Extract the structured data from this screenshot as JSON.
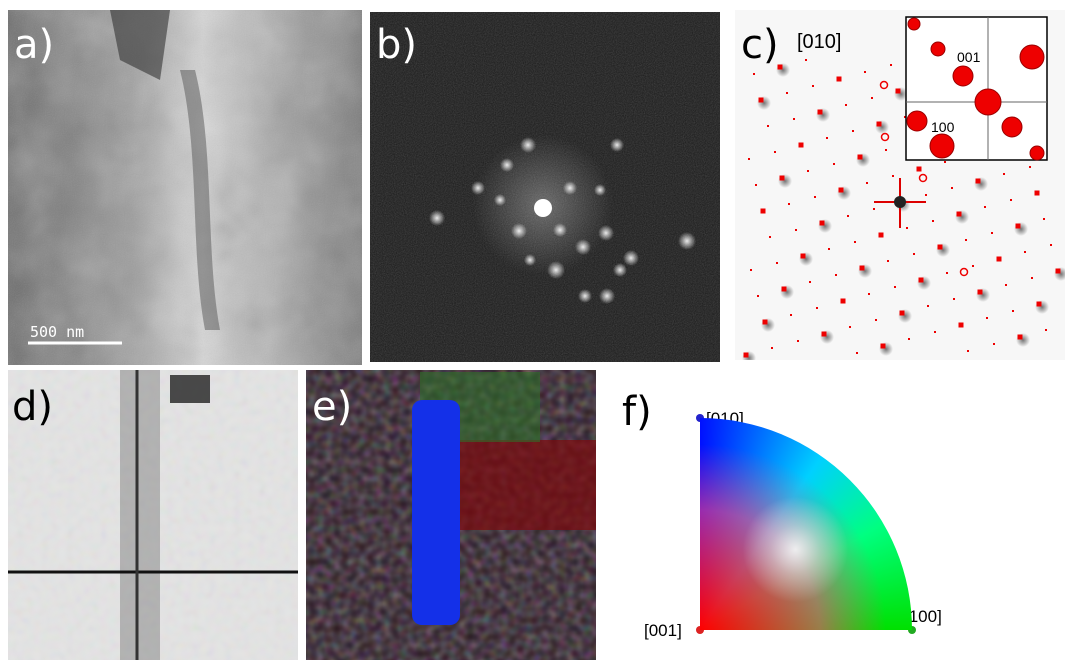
{
  "panels": [
    {
      "label": "a)",
      "scale_bar": "500 nm"
    },
    {
      "label": "b)"
    },
    {
      "label": "c)",
      "zone_axis": "[010]",
      "inset_labels": [
        "001",
        "100"
      ]
    },
    {
      "label": "d)"
    },
    {
      "label": "e)"
    },
    {
      "label": "f)",
      "corners": [
        "[010]",
        "[001]",
        "[100]"
      ]
    }
  ]
}
